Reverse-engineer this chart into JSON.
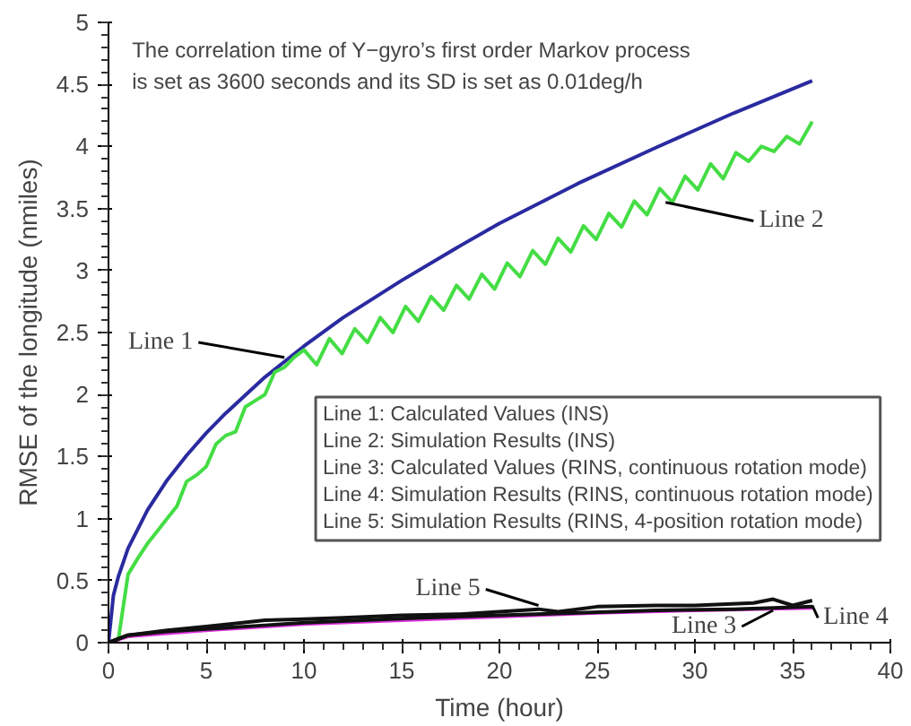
{
  "chart_data": {
    "type": "line",
    "xlabel": "Time (hour)",
    "ylabel": "RMSE of the longitude (nmiles)",
    "xlim": [
      0,
      40
    ],
    "ylim": [
      0,
      5
    ],
    "xticks": [
      0,
      5,
      10,
      15,
      20,
      25,
      30,
      35,
      40
    ],
    "yticks": [
      0,
      0.5,
      1,
      1.5,
      2,
      2.5,
      3,
      3.5,
      4,
      4.5,
      5
    ],
    "grid": false,
    "line_style": "solid",
    "marker": "none",
    "series": [
      {
        "color": "#2a2aa0",
        "x": [
          0,
          0.25,
          0.5,
          1,
          2,
          3,
          4,
          5,
          6,
          8,
          10,
          12,
          15,
          18,
          20,
          24,
          28,
          32,
          36
        ],
        "values": [
          0,
          0.38,
          0.53,
          0.76,
          1.07,
          1.31,
          1.51,
          1.69,
          1.85,
          2.14,
          2.39,
          2.62,
          2.92,
          3.2,
          3.38,
          3.7,
          3.99,
          4.27,
          4.53
        ]
      },
      {
        "color": "#44dd44",
        "x": [
          0,
          0.5,
          1,
          1.5,
          2,
          2.5,
          3,
          3.5,
          4,
          4.5,
          5,
          5.5,
          6,
          6.5,
          7,
          7.5,
          8,
          8.5,
          9,
          9.5,
          10,
          10.65,
          11.3,
          11.95,
          12.6,
          13.25,
          13.9,
          14.55,
          15.2,
          15.85,
          16.5,
          17.15,
          17.8,
          18.45,
          19.1,
          19.75,
          20.4,
          21.05,
          21.7,
          22.35,
          23,
          23.65,
          24.3,
          24.95,
          25.6,
          26.25,
          26.9,
          27.55,
          28.2,
          28.85,
          29.5,
          30.15,
          30.8,
          31.45,
          32.1,
          32.75,
          33.4,
          34.05,
          34.7,
          35.35,
          36
        ],
        "values": [
          0,
          0.02,
          0.55,
          0.68,
          0.8,
          0.9,
          1.0,
          1.1,
          1.3,
          1.35,
          1.42,
          1.6,
          1.67,
          1.7,
          1.9,
          1.95,
          2.0,
          2.18,
          2.22,
          2.3,
          2.36,
          2.24,
          2.45,
          2.33,
          2.53,
          2.42,
          2.62,
          2.5,
          2.71,
          2.59,
          2.79,
          2.68,
          2.88,
          2.77,
          2.97,
          2.85,
          3.06,
          2.95,
          3.16,
          3.05,
          3.26,
          3.15,
          3.36,
          3.25,
          3.46,
          3.35,
          3.56,
          3.45,
          3.66,
          3.55,
          3.76,
          3.65,
          3.86,
          3.74,
          3.95,
          3.88,
          4.0,
          3.96,
          4.08,
          4.02,
          4.2
        ]
      },
      {
        "color": "#dd33dd",
        "x": [
          0,
          1,
          5,
          10,
          15,
          20,
          25,
          30,
          36
        ],
        "values": [
          0,
          0.05,
          0.1,
          0.15,
          0.18,
          0.21,
          0.24,
          0.26,
          0.28
        ]
      },
      {
        "color": "#111111",
        "x": [
          0,
          1,
          3,
          5,
          8,
          10,
          13,
          16,
          20,
          24,
          28,
          32,
          36
        ],
        "values": [
          0,
          0.06,
          0.09,
          0.11,
          0.14,
          0.16,
          0.18,
          0.2,
          0.22,
          0.24,
          0.26,
          0.27,
          0.29
        ]
      },
      {
        "color": "#111111",
        "x": [
          0,
          1,
          3,
          5,
          8,
          10,
          12,
          15,
          18,
          20,
          22,
          23,
          25,
          28,
          30,
          33,
          34,
          35,
          36
        ],
        "values": [
          0,
          0.06,
          0.1,
          0.13,
          0.18,
          0.19,
          0.2,
          0.22,
          0.23,
          0.25,
          0.27,
          0.25,
          0.29,
          0.3,
          0.3,
          0.32,
          0.35,
          0.3,
          0.34
        ]
      }
    ],
    "annotations": [
      "The correlation time of Y−gyro’s first order Markov process\n is set as 3600 seconds and its SD is set as 0.01deg/h",
      "Line 1: Calculated Values (INS)\nLine 2: Simulation Results (INS)\nLine 3: Calculated Values (RINS, continuous rotation mode)\nLine 4: Simulation Results (RINS, continuous rotation mode)\nLine 5: Simulation Results (RINS, 4-position rotation mode)",
      {
        "text": "Line 1",
        "x": 9,
        "y": 2.3
      },
      {
        "text": "Line 2",
        "x": 28.5,
        "y": 3.55
      },
      {
        "text": "Line 5",
        "x": 22,
        "y": 0.3
      },
      {
        "text": "Line 3",
        "x": 34,
        "y": 0.26
      },
      {
        "text": "Line 4",
        "x": 36,
        "y": 0.3
      }
    ]
  }
}
